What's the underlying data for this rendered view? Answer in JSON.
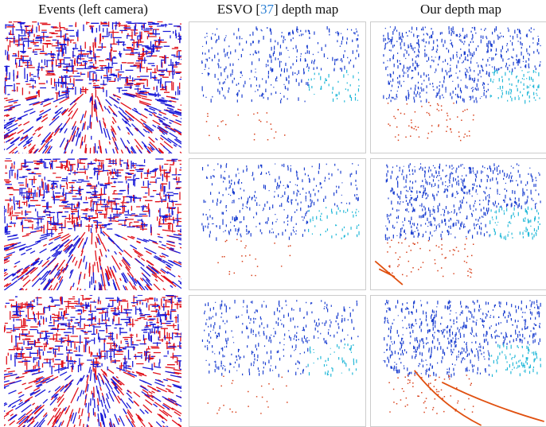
{
  "figure": {
    "headers": [
      {
        "text": "Events (left camera)"
      },
      {
        "before": "ESVO [",
        "cite": "37",
        "after": "] depth map"
      },
      {
        "text": "Our depth map"
      }
    ]
  }
}
